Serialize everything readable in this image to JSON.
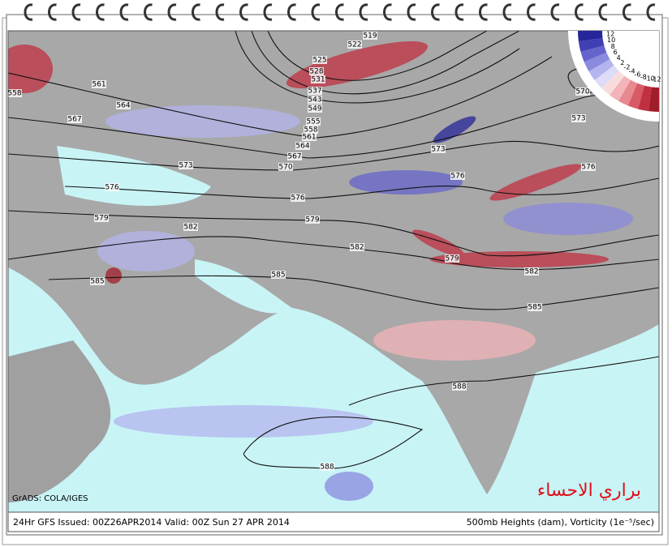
{
  "map": {
    "footer_left": "24Hr GFS Issued: 00Z26APR2014 Valid: 00Z Sun 27 APR 2014",
    "footer_right": "500mb Heights (dam), Vorticity (1e⁻⁵/sec)",
    "credit": "GrADS: COLA/IGES",
    "watermark": "براري الاحساء",
    "contour_labels": [
      "519",
      "522",
      "525",
      "528",
      "531",
      "537",
      "543",
      "549",
      "555",
      "558",
      "561",
      "564",
      "567",
      "570",
      "573",
      "576",
      "579",
      "582",
      "585",
      "588",
      "588",
      "561",
      "564",
      "567",
      "558",
      "573",
      "576",
      "570",
      "573",
      "576",
      "579",
      "582",
      "585",
      "576",
      "579",
      "582",
      "585"
    ],
    "colorbar": {
      "labels": [
        "12",
        "10",
        "8",
        "6",
        "4",
        "2",
        "-2",
        "-4",
        "-6",
        "-8",
        "-10",
        "-12"
      ],
      "colors": [
        "#a01e2a",
        "#c03040",
        "#d85a64",
        "#e88890",
        "#f2b4b8",
        "#f8dcdc",
        "#dcdcf8",
        "#b4b4ee",
        "#8a8ade",
        "#6464cc",
        "#4040b4",
        "#26269a"
      ]
    }
  }
}
